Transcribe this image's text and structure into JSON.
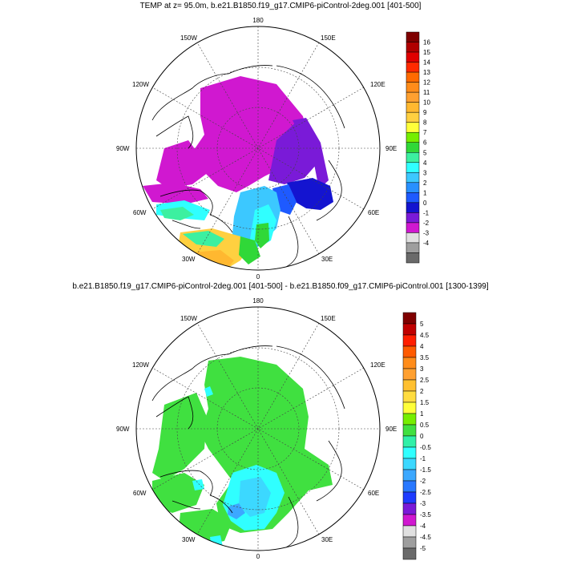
{
  "top_panel": {
    "title": "TEMP at z=  95.0m, b.e21.B1850.f19_g17.CMIP6-piControl-2deg.001 [401-500]",
    "lon_labels": [
      "180",
      "150E",
      "120E",
      "90E",
      "60E",
      "30E",
      "0",
      "30W",
      "60W",
      "90W",
      "120W",
      "150W"
    ],
    "colorbar": {
      "labels": [
        "16",
        "15",
        "14",
        "13",
        "12",
        "11",
        "10",
        "9",
        "8",
        "7",
        "6",
        "5",
        "4",
        "3",
        "2",
        "1",
        "0",
        "-1",
        "-2",
        "-3",
        "-4"
      ],
      "colors": [
        "#7f0000",
        "#b00000",
        "#e00000",
        "#ff2a00",
        "#ff6a00",
        "#ff8c1a",
        "#ffa030",
        "#ffb830",
        "#ffd040",
        "#ffff3a",
        "#76ee00",
        "#30d838",
        "#3cf0a0",
        "#30ffff",
        "#3cc8ff",
        "#2890ff",
        "#1e5aff",
        "#1414d0",
        "#7a1ad8",
        "#d018d0",
        "#e0e0e0",
        "#9e9e9e",
        "#6a6a6a"
      ]
    }
  },
  "bottom_panel": {
    "title": "b.e21.B1850.f19_g17.CMIP6-piControl-2deg.001 [401-500] - b.e21.B1850.f09_g17.CMIP6-piControl.001 [1300-1399]",
    "lon_labels": [
      "180",
      "150E",
      "120E",
      "90E",
      "60E",
      "30E",
      "0",
      "30W",
      "60W",
      "90W",
      "120W",
      "150W"
    ],
    "colorbar": {
      "labels": [
        "5",
        "4.5",
        "4",
        "3.5",
        "3",
        "2.5",
        "2",
        "1.5",
        "1",
        "0.5",
        "0",
        "-0.5",
        "-1",
        "-1.5",
        "-2",
        "-2.5",
        "-3",
        "-3.5",
        "-4",
        "-4.5",
        "-5"
      ],
      "colors": [
        "#7f0000",
        "#c00000",
        "#ff1e00",
        "#ff5a00",
        "#ff8c1a",
        "#ffa030",
        "#ffc030",
        "#ffdc40",
        "#ffff3a",
        "#76ee00",
        "#40e040",
        "#30f0a8",
        "#30ffff",
        "#3cd8ff",
        "#3ca8ff",
        "#2878ff",
        "#1e3cff",
        "#7a1ad8",
        "#d018d0",
        "#e0e0e0",
        "#9e9e9e",
        "#6a6a6a"
      ]
    }
  }
}
